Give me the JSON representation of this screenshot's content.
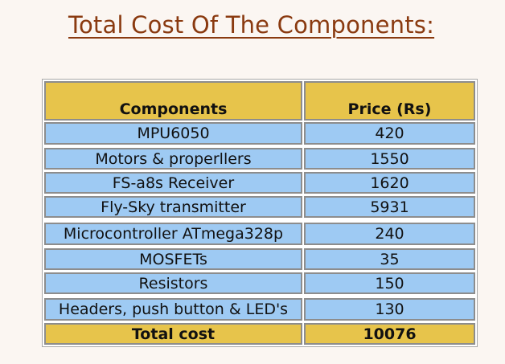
{
  "page": {
    "title": "Total Cost Of The Components:",
    "colors": {
      "title": "#8a3a10",
      "header_fill": "#e7c44b",
      "row_fill": "#9ecaf3",
      "background": "#fbf6f2"
    }
  },
  "table": {
    "headers": [
      "Components",
      "Price (Rs)"
    ],
    "rows": [
      {
        "component": "MPU6050",
        "price": "420"
      },
      {
        "component": "Motors & properllers",
        "price": "1550"
      },
      {
        "component": "FS-a8s Receiver",
        "price": "1620"
      },
      {
        "component": "Fly-Sky transmitter",
        "price": "5931"
      },
      {
        "component": "Microcontroller ATmega328p",
        "price": "240"
      },
      {
        "component": "MOSFETs",
        "price": "35"
      },
      {
        "component": "Resistors",
        "price": "150"
      },
      {
        "component": "Headers, push button & LED's",
        "price": "130"
      }
    ],
    "total": {
      "label": "Total cost",
      "value": "10076"
    }
  }
}
